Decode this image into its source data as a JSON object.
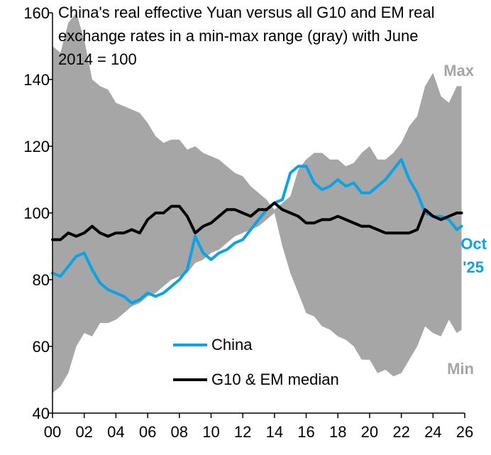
{
  "chart_data": {
    "type": "area",
    "title_lines": [
      "China's real effective Yuan versus all G10 and EM real",
      "exchange rates in a min-max range (gray) with June",
      "2014 = 100"
    ],
    "xlabel": "",
    "ylabel": "",
    "xlim": [
      2000,
      2026
    ],
    "ylim": [
      40,
      160
    ],
    "x_ticks": [
      2000,
      2002,
      2004,
      2006,
      2008,
      2010,
      2012,
      2014,
      2016,
      2018,
      2020,
      2022,
      2024,
      2026
    ],
    "x_tick_labels": [
      "00",
      "02",
      "04",
      "06",
      "08",
      "10",
      "12",
      "14",
      "16",
      "18",
      "20",
      "22",
      "24",
      "26"
    ],
    "y_ticks": [
      40,
      60,
      80,
      100,
      120,
      140,
      160
    ],
    "y_tick_labels": [
      "40",
      "60",
      "80",
      "100",
      "120",
      "140",
      "160"
    ],
    "annotations": {
      "max": "Max",
      "min": "Min",
      "oct_line1": "Oct",
      "oct_line2": "'25"
    },
    "colors": {
      "range": "#a6a6a6",
      "china": "#0aa4e6",
      "median": "#000000"
    },
    "legend": [
      {
        "name": "China",
        "color": "#0aa4e6"
      },
      {
        "name": "G10 & EM median",
        "color": "#000000"
      }
    ],
    "range_band": {
      "name": "min-max range",
      "x": [
        2000.0,
        2000.5,
        2001.0,
        2001.5,
        2002.0,
        2002.5,
        2003.0,
        2003.5,
        2004.0,
        2004.5,
        2005.0,
        2005.5,
        2006.0,
        2006.5,
        2007.0,
        2007.5,
        2008.0,
        2008.5,
        2009.0,
        2009.5,
        2010.0,
        2010.5,
        2011.0,
        2011.5,
        2012.0,
        2012.5,
        2013.0,
        2013.5,
        2014.0,
        2014.5,
        2015.0,
        2015.5,
        2016.0,
        2016.5,
        2017.0,
        2017.5,
        2018.0,
        2018.5,
        2019.0,
        2019.5,
        2020.0,
        2020.5,
        2021.0,
        2021.5,
        2022.0,
        2022.5,
        2023.0,
        2023.5,
        2024.0,
        2024.5,
        2025.0,
        2025.5,
        2025.8
      ],
      "max": [
        150,
        148,
        157,
        160,
        152,
        140,
        138,
        137,
        133,
        132,
        131,
        130,
        127,
        123,
        121,
        122,
        122,
        119,
        120,
        118,
        117,
        116,
        114,
        112,
        111,
        108,
        106,
        104,
        101,
        103,
        105,
        113,
        116,
        118,
        118,
        116,
        116,
        114,
        115,
        118,
        120,
        116,
        116,
        118,
        121,
        126,
        129,
        138,
        142,
        135,
        133,
        138,
        138
      ],
      "min": [
        46,
        48,
        52,
        60,
        64,
        63,
        67,
        67,
        68,
        70,
        72,
        73,
        75,
        76,
        78,
        80,
        81,
        82,
        85,
        86,
        88,
        89,
        91,
        93,
        94,
        95,
        96,
        98,
        100,
        90,
        82,
        76,
        70,
        69,
        66,
        65,
        63,
        62,
        60,
        56,
        56,
        52,
        53,
        51,
        52,
        56,
        60,
        66,
        64,
        63,
        68,
        64,
        65
      ]
    },
    "series": [
      {
        "name": "China",
        "x": [
          2000.0,
          2000.5,
          2001.0,
          2001.5,
          2002.0,
          2002.5,
          2003.0,
          2003.5,
          2004.0,
          2004.5,
          2005.0,
          2005.5,
          2006.0,
          2006.5,
          2007.0,
          2007.5,
          2008.0,
          2008.5,
          2009.0,
          2009.5,
          2010.0,
          2010.5,
          2011.0,
          2011.5,
          2012.0,
          2012.5,
          2013.0,
          2013.5,
          2014.0,
          2014.5,
          2015.0,
          2015.5,
          2016.0,
          2016.5,
          2017.0,
          2017.5,
          2018.0,
          2018.5,
          2019.0,
          2019.5,
          2020.0,
          2020.5,
          2021.0,
          2021.5,
          2022.0,
          2022.5,
          2023.0,
          2023.5,
          2024.0,
          2024.5,
          2025.0,
          2025.5,
          2025.8
        ],
        "values": [
          82,
          81,
          84,
          87,
          88,
          83,
          79,
          77,
          76,
          75,
          73,
          74,
          76,
          75,
          76,
          78,
          80,
          83,
          93,
          88,
          86,
          88,
          89,
          91,
          92,
          95,
          98,
          101,
          103,
          104,
          112,
          114,
          114,
          109,
          107,
          108,
          110,
          108,
          109,
          106,
          106,
          108,
          110,
          113,
          116,
          110,
          106,
          100,
          99,
          99,
          98,
          95,
          96
        ]
      },
      {
        "name": "G10 & EM median",
        "x": [
          2000.0,
          2000.5,
          2001.0,
          2001.5,
          2002.0,
          2002.5,
          2003.0,
          2003.5,
          2004.0,
          2004.5,
          2005.0,
          2005.5,
          2006.0,
          2006.5,
          2007.0,
          2007.5,
          2008.0,
          2008.5,
          2009.0,
          2009.5,
          2010.0,
          2010.5,
          2011.0,
          2011.5,
          2012.0,
          2012.5,
          2013.0,
          2013.5,
          2014.0,
          2014.5,
          2015.0,
          2015.5,
          2016.0,
          2016.5,
          2017.0,
          2017.5,
          2018.0,
          2018.5,
          2019.0,
          2019.5,
          2020.0,
          2020.5,
          2021.0,
          2021.5,
          2022.0,
          2022.5,
          2023.0,
          2023.5,
          2024.0,
          2024.5,
          2025.0,
          2025.5,
          2025.8
        ],
        "values": [
          92,
          92,
          94,
          93,
          94,
          96,
          94,
          93,
          94,
          94,
          95,
          94,
          98,
          100,
          100,
          102,
          102,
          99,
          94,
          96,
          97,
          99,
          101,
          101,
          100,
          99,
          101,
          101,
          103,
          101,
          100,
          99,
          97,
          97,
          98,
          98,
          99,
          98,
          97,
          96,
          96,
          95,
          94,
          94,
          94,
          94,
          95,
          101,
          99,
          98,
          99,
          100,
          100
        ]
      }
    ]
  }
}
